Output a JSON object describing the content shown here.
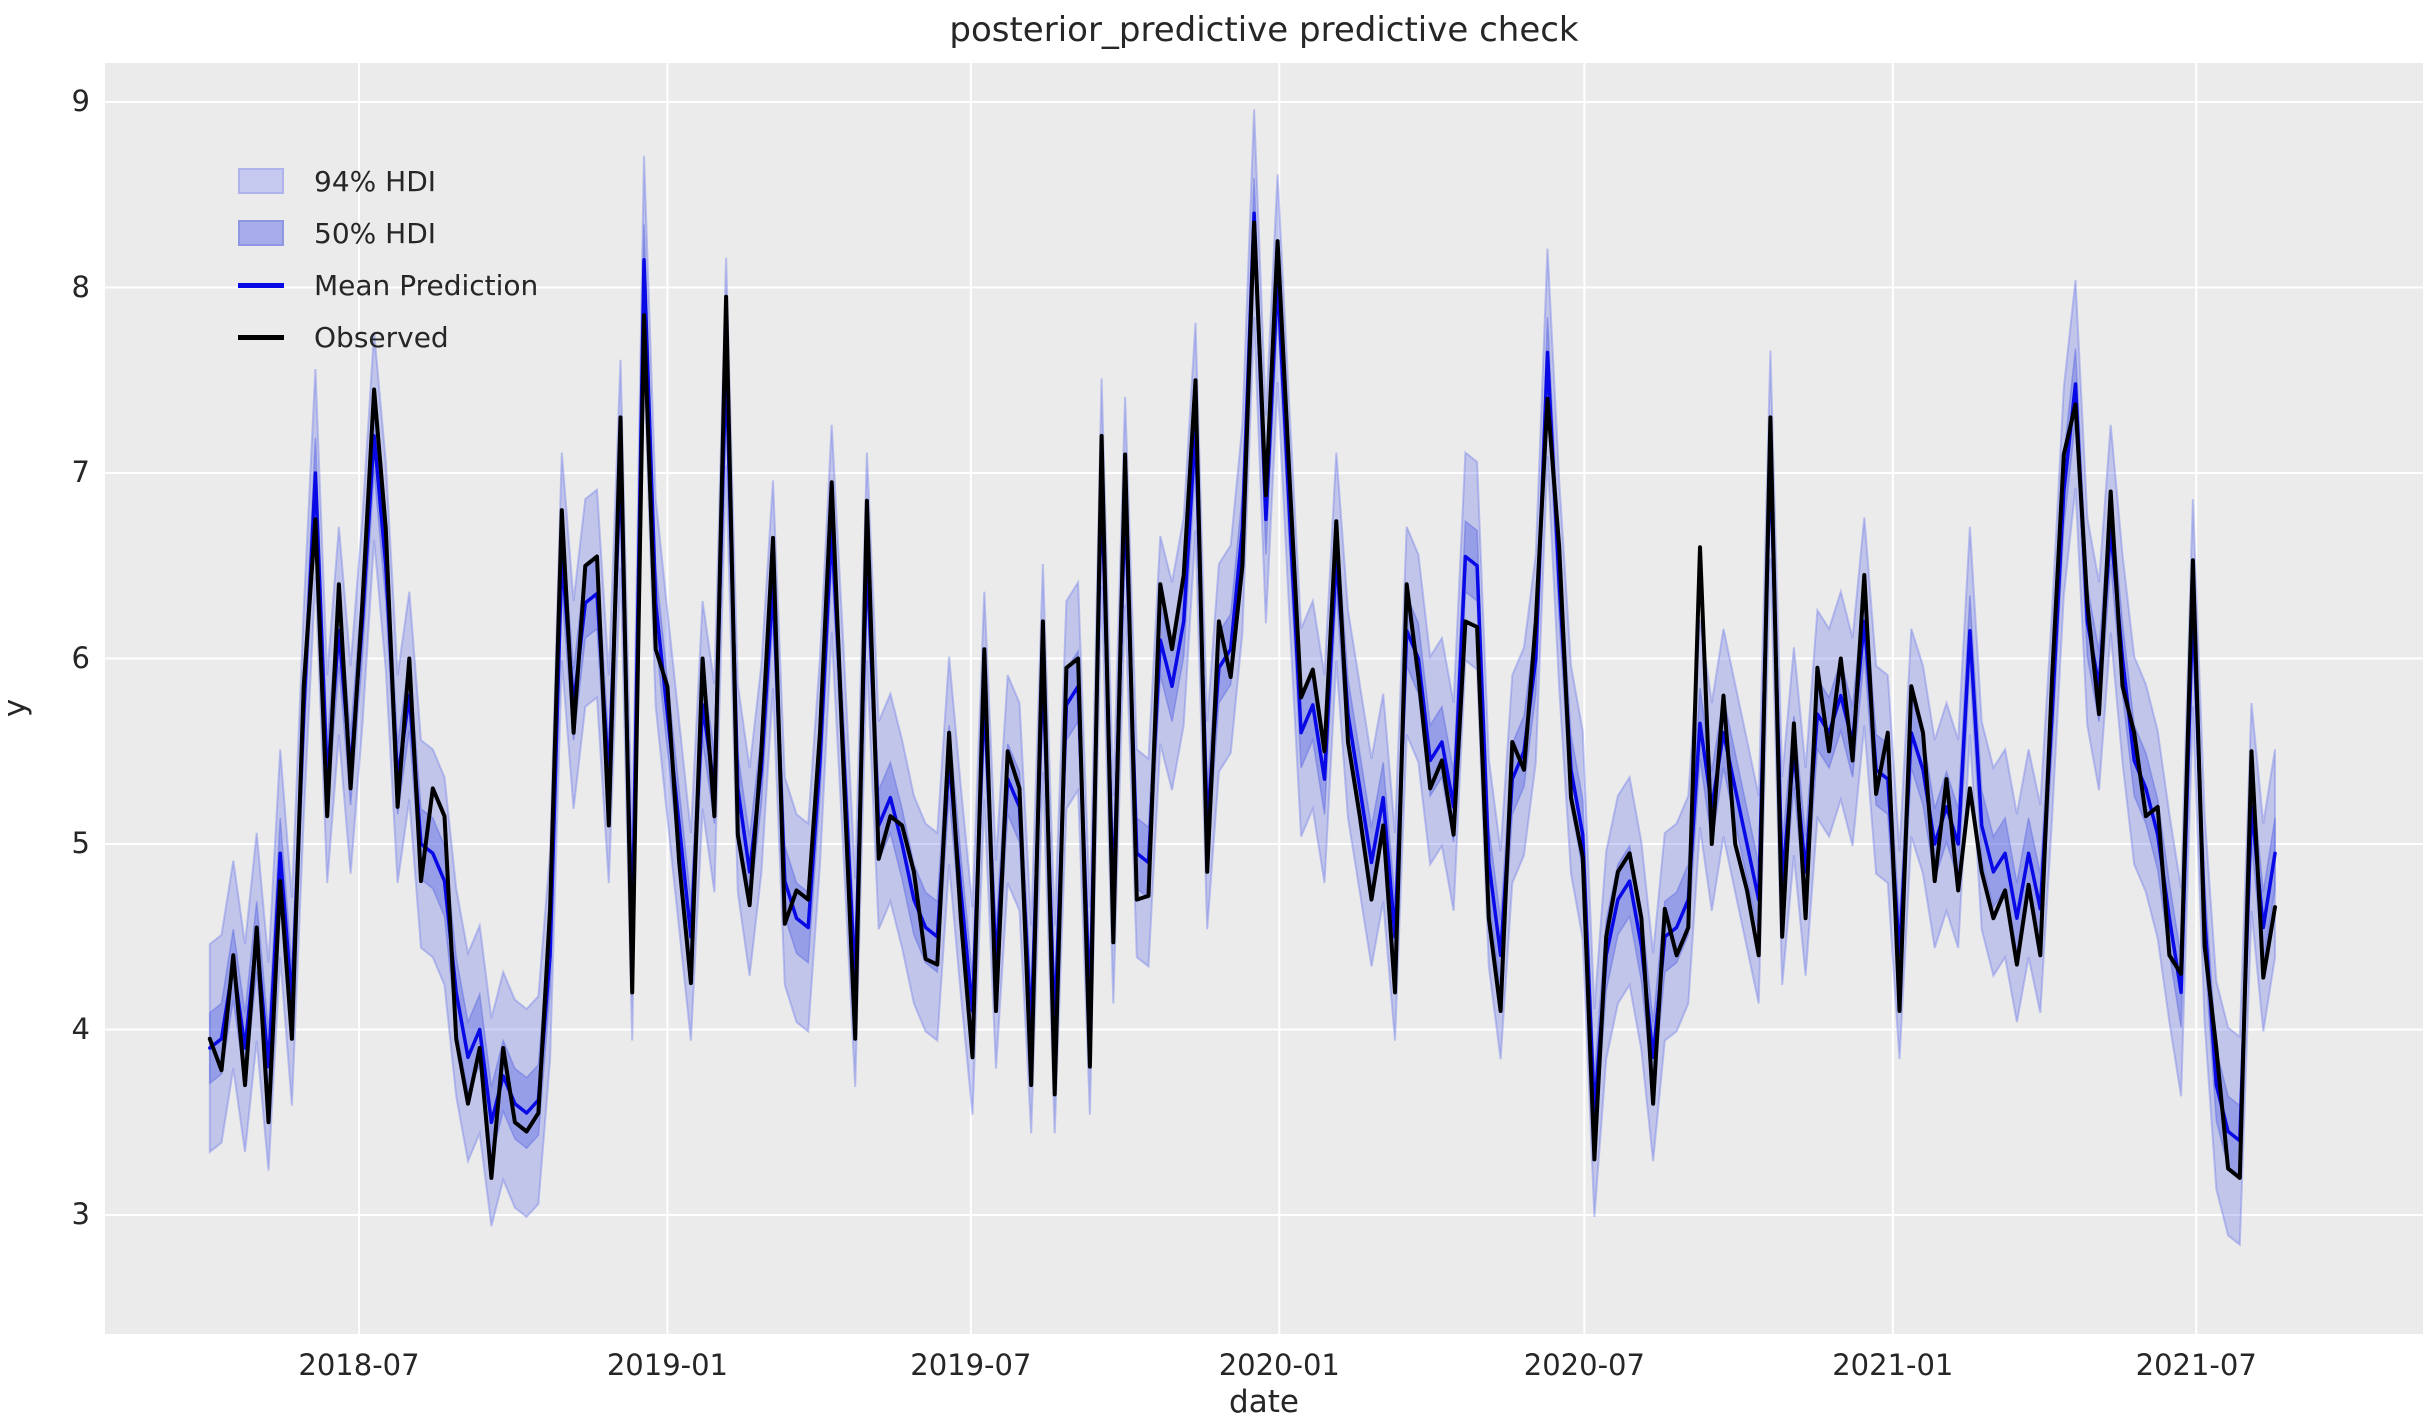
{
  "title": "posterior_predictive predictive check",
  "xlabel": "date",
  "ylabel": "y",
  "legend": [
    {
      "label": "94% HDI",
      "type": "patch",
      "color": "#c5c9f0",
      "border": "#aeb3ea"
    },
    {
      "label": "50% HDI",
      "type": "patch",
      "color": "#a6ace9",
      "border": "#8f96e2"
    },
    {
      "label": "Mean Prediction",
      "type": "line",
      "color": "#0909e6"
    },
    {
      "label": "Observed",
      "type": "line",
      "color": "#000000"
    }
  ],
  "colors": {
    "axes_background": "#ebebeb",
    "gridline": "#ffffff",
    "band94_fill": "rgba(110,122,232,0.33)",
    "band94_edge": "rgba(110,122,232,0.40)",
    "band50_fill": "rgba(98,110,228,0.45)",
    "band50_edge": "rgba(98,110,228,0.50)",
    "mean_line": "#0909e6",
    "observed_line": "#000000",
    "text": "#262626"
  },
  "axes": {
    "x_ticks": [
      {
        "label": "2018-07",
        "date": "2018-07-01"
      },
      {
        "label": "2019-01",
        "date": "2019-01-01"
      },
      {
        "label": "2019-07",
        "date": "2019-07-01"
      },
      {
        "label": "2020-01",
        "date": "2020-01-01"
      },
      {
        "label": "2020-07",
        "date": "2020-07-01"
      },
      {
        "label": "2021-01",
        "date": "2021-01-01"
      },
      {
        "label": "2021-07",
        "date": "2021-07-01"
      }
    ],
    "y_ticks": [
      3,
      4,
      5,
      6,
      7,
      8,
      9
    ],
    "ylim": [
      2.35,
      9.21
    ],
    "grid": true
  },
  "chart_data": {
    "type": "line",
    "title": "posterior_predictive predictive check",
    "xlabel": "date",
    "ylabel": "y",
    "legend_position": "upper left",
    "x_start": "2018-04-03",
    "x_freq_days": 7,
    "n_points": 177,
    "x_end": "2021-08-17",
    "ylim": [
      2.35,
      9.21
    ],
    "series": [
      {
        "name": "Observed",
        "color": "#000000",
        "values": [
          3.95,
          3.78,
          4.4,
          3.7,
          4.55,
          3.5,
          4.8,
          3.95,
          5.85,
          6.75,
          5.15,
          6.4,
          5.3,
          6.3,
          7.45,
          6.7,
          5.2,
          6.0,
          4.8,
          5.3,
          5.15,
          3.95,
          3.6,
          3.9,
          3.2,
          3.9,
          3.5,
          3.45,
          3.55,
          4.65,
          6.8,
          5.6,
          6.5,
          6.55,
          5.1,
          7.3,
          4.2,
          7.85,
          6.05,
          5.85,
          4.9,
          4.25,
          6.0,
          5.15,
          7.95,
          5.05,
          4.67,
          5.5,
          6.65,
          4.57,
          4.75,
          4.7,
          5.6,
          6.95,
          5.4,
          3.95,
          6.85,
          4.92,
          5.15,
          5.1,
          4.85,
          4.38,
          4.35,
          5.6,
          4.6,
          3.85,
          6.05,
          4.1,
          5.5,
          5.3,
          3.7,
          6.2,
          3.65,
          5.95,
          6.0,
          3.8,
          7.2,
          4.47,
          7.1,
          4.7,
          4.72,
          6.4,
          6.05,
          6.45,
          7.5,
          4.85,
          6.2,
          5.9,
          6.5,
          8.35,
          6.88,
          8.25,
          7.0,
          5.79,
          5.94,
          5.5,
          6.74,
          5.55,
          5.15,
          4.7,
          5.1,
          4.2,
          6.4,
          5.9,
          5.3,
          5.45,
          5.05,
          6.2,
          6.17,
          4.6,
          4.1,
          5.55,
          5.4,
          6.2,
          7.4,
          6.6,
          5.25,
          4.93,
          3.3,
          4.5,
          4.85,
          4.95,
          4.6,
          3.6,
          4.65,
          4.4,
          4.55,
          6.6,
          5.0,
          5.8,
          5.0,
          4.75,
          4.4,
          7.3,
          4.5,
          5.65,
          4.6,
          5.95,
          5.5,
          6.0,
          5.45,
          6.45,
          5.27,
          5.6,
          4.1,
          5.85,
          5.6,
          4.8,
          5.35,
          4.75,
          5.3,
          4.85,
          4.6,
          4.75,
          4.35,
          4.78,
          4.4,
          5.9,
          7.1,
          7.37,
          6.3,
          5.7,
          6.9,
          5.85,
          5.6,
          5.15,
          5.2,
          4.4,
          4.3,
          6.53,
          4.45,
          3.9,
          3.25,
          3.2,
          5.5,
          4.28,
          4.66
        ]
      },
      {
        "name": "Mean Prediction",
        "color": "#0909e6",
        "values": [
          3.9,
          3.95,
          4.35,
          3.9,
          4.5,
          3.8,
          4.95,
          4.15,
          5.7,
          7.0,
          5.35,
          6.15,
          5.4,
          6.2,
          7.2,
          6.5,
          5.35,
          5.8,
          5.0,
          4.95,
          4.8,
          4.2,
          3.85,
          4.0,
          3.5,
          3.75,
          3.6,
          3.55,
          3.62,
          4.4,
          6.55,
          5.75,
          6.3,
          6.35,
          5.35,
          7.05,
          4.5,
          8.15,
          6.3,
          5.7,
          5.1,
          4.5,
          5.75,
          5.3,
          7.6,
          5.3,
          4.85,
          5.4,
          6.4,
          4.8,
          4.6,
          4.55,
          5.45,
          6.7,
          5.5,
          4.25,
          6.55,
          5.1,
          5.25,
          5.0,
          4.7,
          4.55,
          4.5,
          5.45,
          4.75,
          4.1,
          5.8,
          4.35,
          5.35,
          5.2,
          4.0,
          5.95,
          4.0,
          5.75,
          5.85,
          4.1,
          6.95,
          4.7,
          6.85,
          4.95,
          4.9,
          6.1,
          5.85,
          6.2,
          7.25,
          5.1,
          5.95,
          6.05,
          6.7,
          8.4,
          6.75,
          8.05,
          6.8,
          5.6,
          5.75,
          5.35,
          6.55,
          5.7,
          5.3,
          4.9,
          5.25,
          4.5,
          6.15,
          6.0,
          5.45,
          5.55,
          5.2,
          6.55,
          6.5,
          4.9,
          4.4,
          5.35,
          5.5,
          6.0,
          7.65,
          6.4,
          5.4,
          5.05,
          3.55,
          4.4,
          4.7,
          4.8,
          4.45,
          3.85,
          4.5,
          4.55,
          4.7,
          5.65,
          5.2,
          5.6,
          5.3,
          5.0,
          4.7,
          7.1,
          4.8,
          5.5,
          4.85,
          5.7,
          5.6,
          5.8,
          5.55,
          6.2,
          5.4,
          5.35,
          4.4,
          5.6,
          5.4,
          5.0,
          5.2,
          5.0,
          6.15,
          5.1,
          4.85,
          4.95,
          4.6,
          4.95,
          4.65,
          5.7,
          6.9,
          7.48,
          6.2,
          5.85,
          6.7,
          6.0,
          5.45,
          5.3,
          5.05,
          4.6,
          4.2,
          6.3,
          4.6,
          3.7,
          3.45,
          3.4,
          5.2,
          4.55,
          4.95
        ]
      }
    ],
    "bands": [
      {
        "name": "94% HDI",
        "around": "Mean Prediction",
        "halfwidth": 0.56
      },
      {
        "name": "50% HDI",
        "around": "Mean Prediction",
        "halfwidth": 0.19
      }
    ]
  }
}
